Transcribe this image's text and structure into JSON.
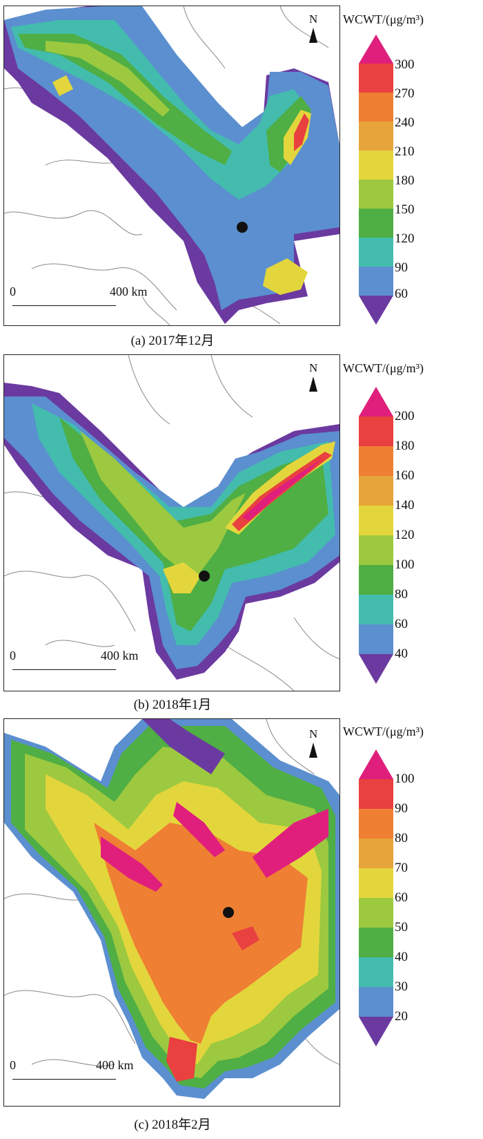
{
  "panels": [
    {
      "id": "a",
      "caption": "(a)  2017年12月",
      "unit_label": "WCWT/(μg/m³)",
      "colorbar_ticks": [
        "300",
        "270",
        "240",
        "210",
        "180",
        "150",
        "120",
        "90",
        "60"
      ],
      "colorbar_colors": [
        "#e01f7c",
        "#e94040",
        "#ee7f33",
        "#e7a43a",
        "#e3d63d",
        "#9cc93f",
        "#4fae44",
        "#43bcae",
        "#5b8fcf",
        "#6b3aa0"
      ],
      "scale_start": "0",
      "scale_end": "400 km",
      "north": "N"
    },
    {
      "id": "b",
      "caption": "(b)  2018年1月",
      "unit_label": "WCWT/(μg/m³)",
      "colorbar_ticks": [
        "200",
        "180",
        "160",
        "140",
        "120",
        "100",
        "80",
        "60",
        "40"
      ],
      "colorbar_colors": [
        "#e01f7c",
        "#e94040",
        "#ee7f33",
        "#e7a43a",
        "#e3d63d",
        "#9cc93f",
        "#4fae44",
        "#43bcae",
        "#5b8fcf",
        "#6b3aa0"
      ],
      "scale_start": "0",
      "scale_end": "400 km",
      "north": "N"
    },
    {
      "id": "c",
      "caption": "(c)  2018年2月",
      "unit_label": "WCWT/(μg/m³)",
      "colorbar_ticks": [
        "100",
        "90",
        "80",
        "70",
        "60",
        "50",
        "40",
        "30",
        "20"
      ],
      "colorbar_colors": [
        "#e01f7c",
        "#e94040",
        "#ee7f33",
        "#e7a43a",
        "#e3d63d",
        "#9cc93f",
        "#4fae44",
        "#43bcae",
        "#5b8fcf",
        "#6b3aa0"
      ],
      "scale_start": "0",
      "scale_end": "400 km",
      "north": "N"
    }
  ]
}
